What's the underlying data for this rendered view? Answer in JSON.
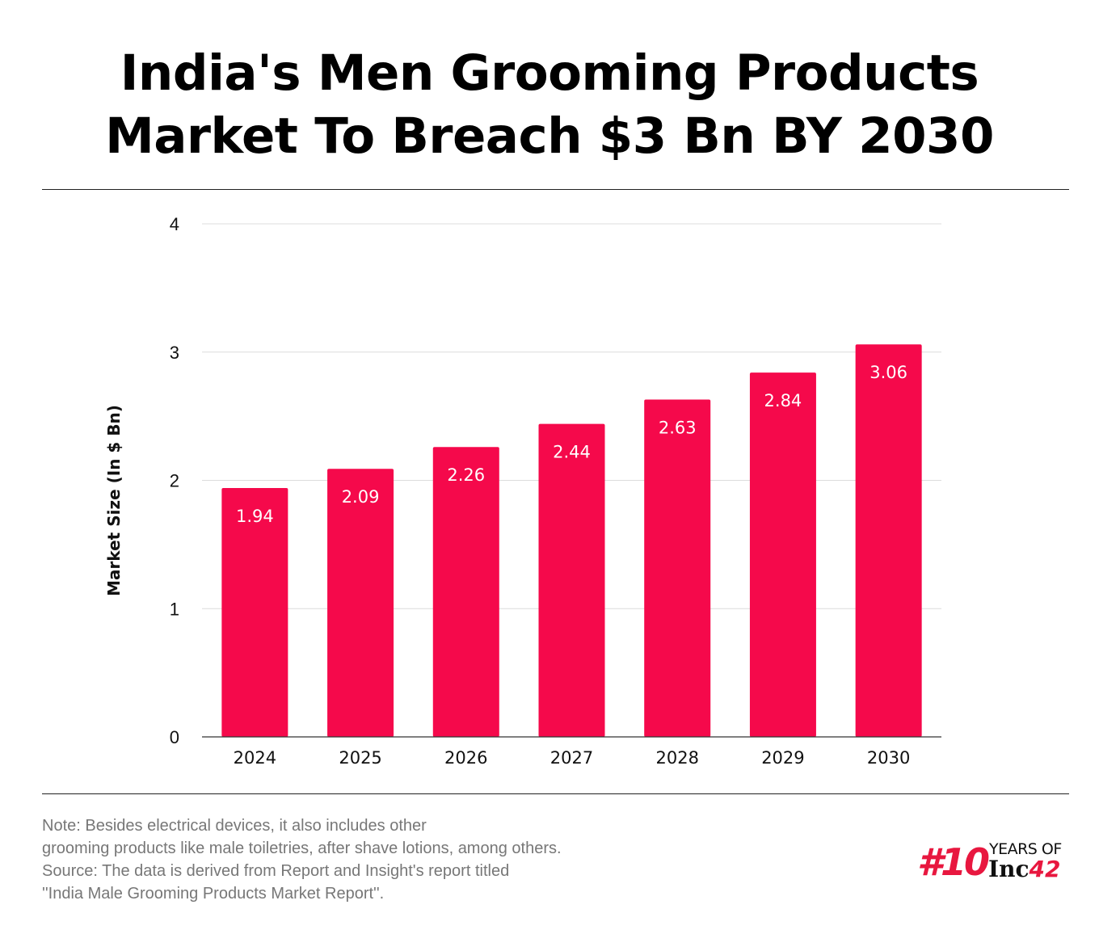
{
  "title": {
    "line1": "India's Men Grooming Products",
    "line2": "Market To Breach $3 Bn BY 2030"
  },
  "chart_data": {
    "type": "bar",
    "categories": [
      "2024",
      "2025",
      "2026",
      "2027",
      "2028",
      "2029",
      "2030"
    ],
    "values": [
      1.94,
      2.09,
      2.26,
      2.44,
      2.63,
      2.84,
      3.06
    ],
    "data_labels": [
      "1.94",
      "2.09",
      "2.26",
      "2.44",
      "2.63",
      "2.84",
      "3.06"
    ],
    "ylabel": "Market Size (In $ Bn)",
    "xlabel": "",
    "ylim": [
      0,
      4
    ],
    "yticks": [
      "0",
      "1",
      "2",
      "3",
      "4"
    ],
    "grid": true,
    "bar_color": "#f5094b"
  },
  "notes": {
    "line1": "Note: Besides electrical devices, it also includes other",
    "line2": "grooming products like male toiletries, after shave lotions, among others.",
    "line3": "Source: The data is derived from Report and Insight's report titled",
    "line4": "''India Male Grooming Products Market Report''."
  },
  "brand": {
    "hash": "#10",
    "years": "YEARS OF",
    "inc": "Inc",
    "inc_num": "42",
    "accent": "#e8173f"
  }
}
